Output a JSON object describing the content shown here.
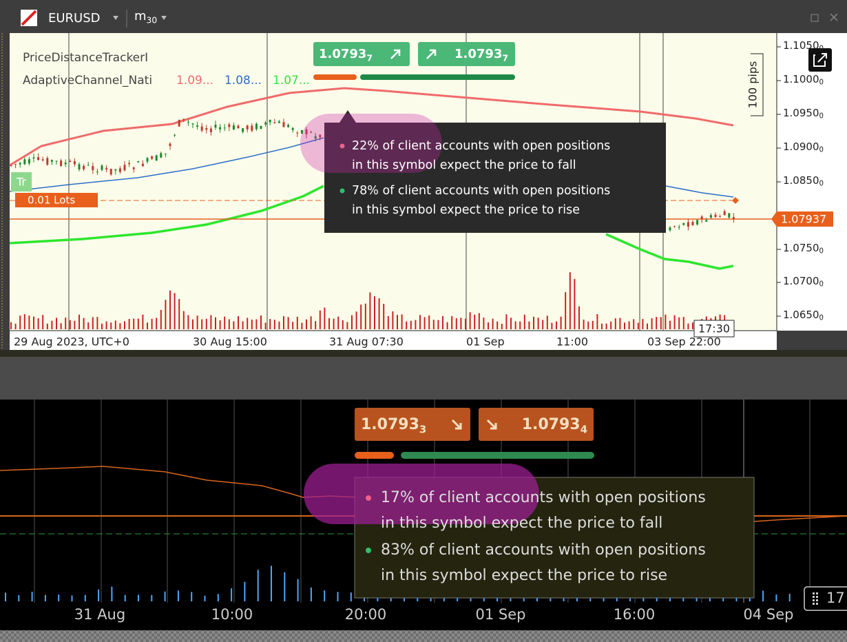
{
  "header": {
    "symbol": "EURUSD",
    "timeframe": "m",
    "timeframe_sub": "30"
  },
  "top_chart": {
    "indicators": [
      {
        "label": "PriceDistanceTrackerI"
      },
      {
        "label": "AdaptiveChannel_Nati",
        "values": [
          "1.09...",
          "1.08...",
          "1.07..."
        ]
      }
    ],
    "sell_button": {
      "price": "1.0793",
      "sub": "7"
    },
    "buy_button": {
      "price": "1.0793",
      "sub": "7"
    },
    "tooltip": [
      {
        "line1": "22% of client accounts with open positions",
        "line2": "in this symbol expect the price to fall"
      },
      {
        "line1": "78% of client accounts with open positions",
        "line2": "in this symbol expect the price to rise"
      }
    ],
    "y_axis": [
      {
        "price": "1.1050",
        "sub": "0"
      },
      {
        "price": "1.1000",
        "sub": "0"
      },
      {
        "price": "1.0950",
        "sub": "0"
      },
      {
        "price": "1.0900",
        "sub": "0"
      },
      {
        "price": "1.0850",
        "sub": "0"
      },
      {
        "price": "1.0750",
        "sub": "0"
      },
      {
        "price": "1.0700",
        "sub": "0"
      },
      {
        "price": "1.0650",
        "sub": "0"
      }
    ],
    "scale_label": "100 pips",
    "price_tag": "1.07937",
    "trade_button": "Tr",
    "lots": "0.01 Lots",
    "x_axis": [
      "29 Aug 2023, UTC+0",
      "30 Aug 15:00",
      "31 Aug 07:30",
      "01 Sep",
      "11:00",
      "03 Sep 22:00"
    ],
    "crosshair_time": "17:30"
  },
  "bottom_chart": {
    "sell_button": {
      "price": "1.0793",
      "sub": "3"
    },
    "buy_button": {
      "price": "1.0793",
      "sub": "4"
    },
    "tooltip": [
      {
        "line1": "17% of client accounts with open positions",
        "line2": "in this symbol expect the price to fall"
      },
      {
        "line1": "83% of client accounts with open positions",
        "line2": "in this symbol expect the price to rise"
      }
    ],
    "x_axis": [
      "31 Aug",
      "10:00",
      "20:00",
      "01 Sep",
      "16:00",
      "04 Sep"
    ],
    "edge_label": "17"
  }
}
